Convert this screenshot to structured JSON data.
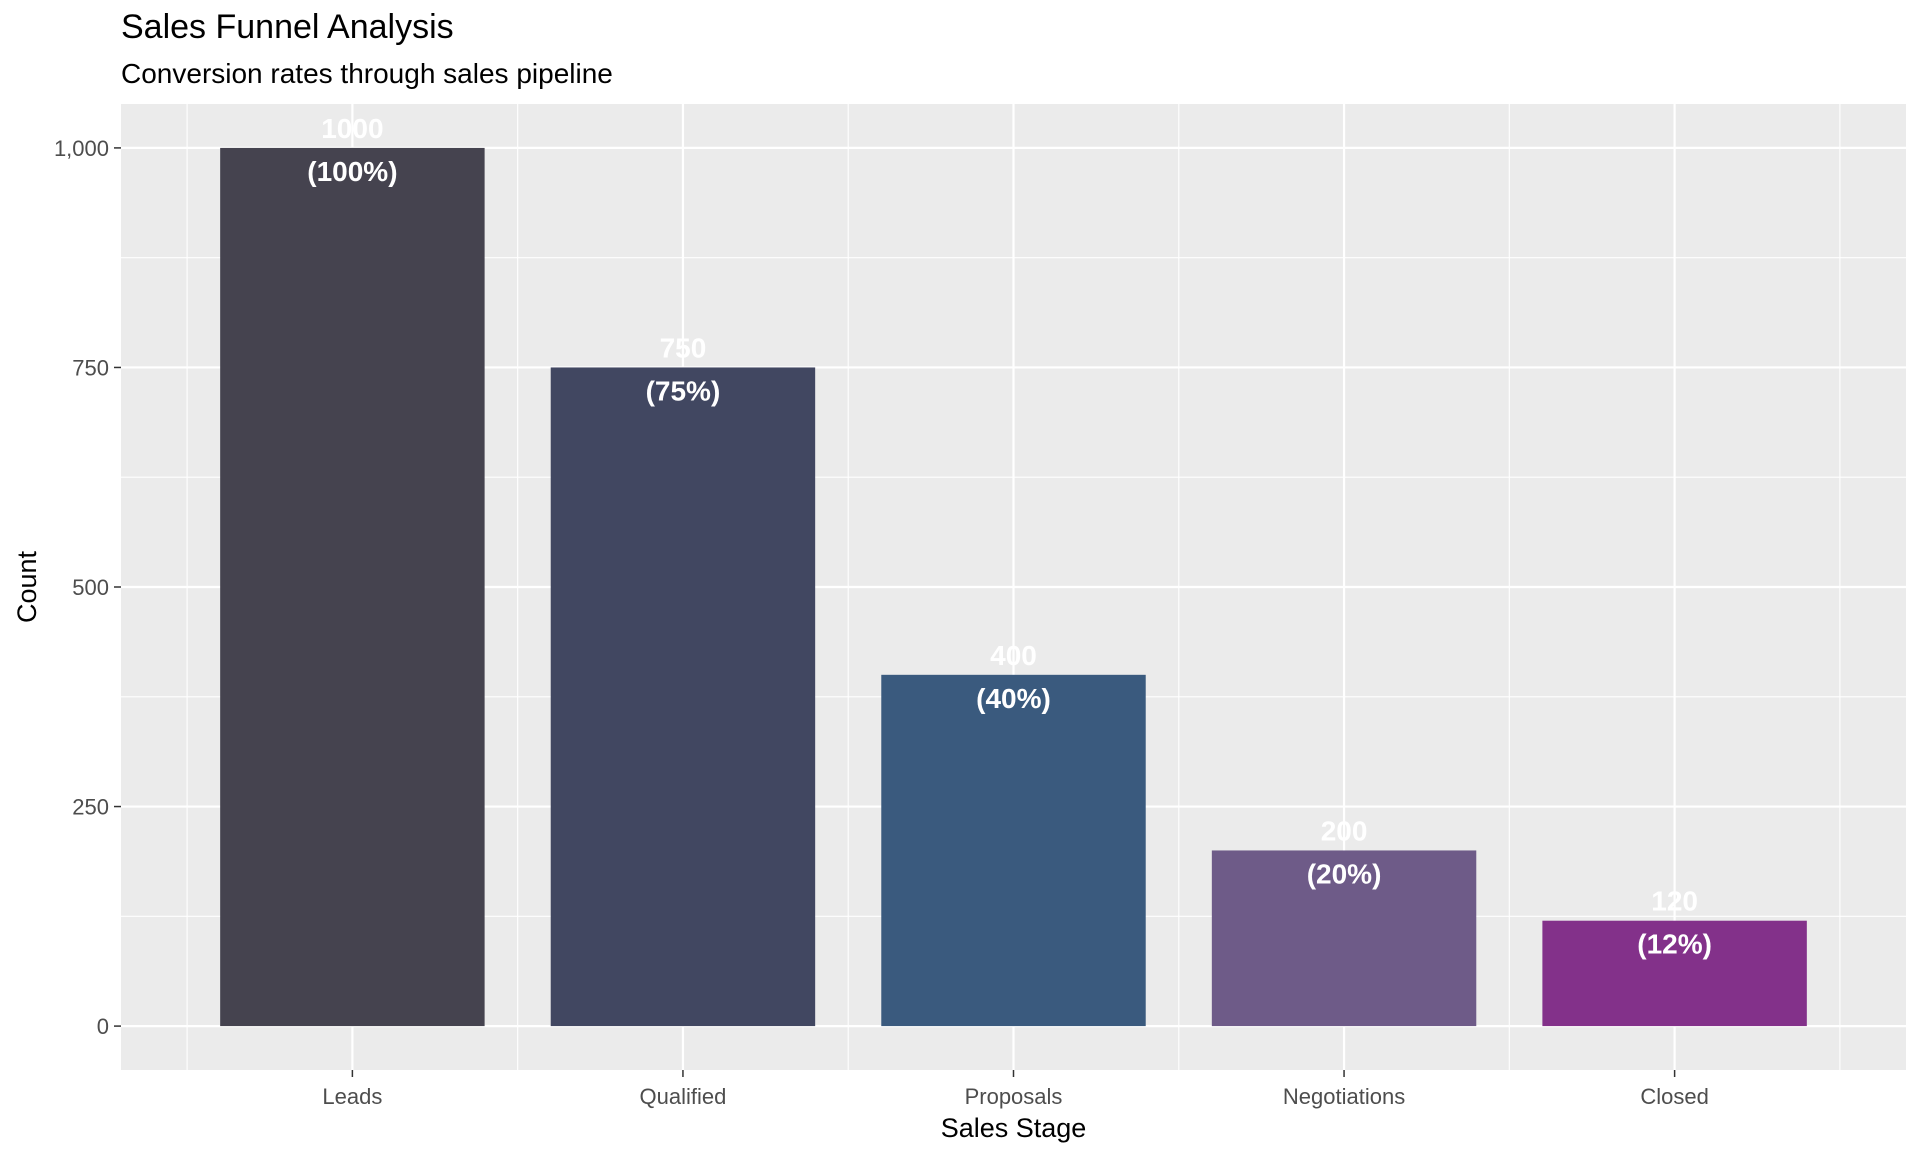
{
  "chart_data": {
    "type": "bar",
    "title": "Sales Funnel Analysis",
    "subtitle": "Conversion rates through sales pipeline",
    "xlabel": "Sales Stage",
    "ylabel": "Count",
    "categories": [
      "Leads",
      "Qualified",
      "Proposals",
      "Negotiations",
      "Closed"
    ],
    "values": [
      1000,
      750,
      400,
      200,
      120
    ],
    "percent_labels": [
      "(100%)",
      "(75%)",
      "(40%)",
      "(20%)",
      "(12%)"
    ],
    "value_labels": [
      "1000",
      "750",
      "400",
      "200",
      "120"
    ],
    "bar_colors": [
      "#45434f",
      "#414761",
      "#3a5a7e",
      "#6e5b88",
      "#83318a"
    ],
    "ylim": [
      -50,
      1050
    ],
    "yticks": [
      0,
      250,
      500,
      750,
      1000
    ],
    "ytick_labels": [
      "0",
      "250",
      "500",
      "750",
      "1,000"
    ],
    "grid": true,
    "panel_background": "#ebebeb",
    "grid_color": "#ffffff"
  }
}
